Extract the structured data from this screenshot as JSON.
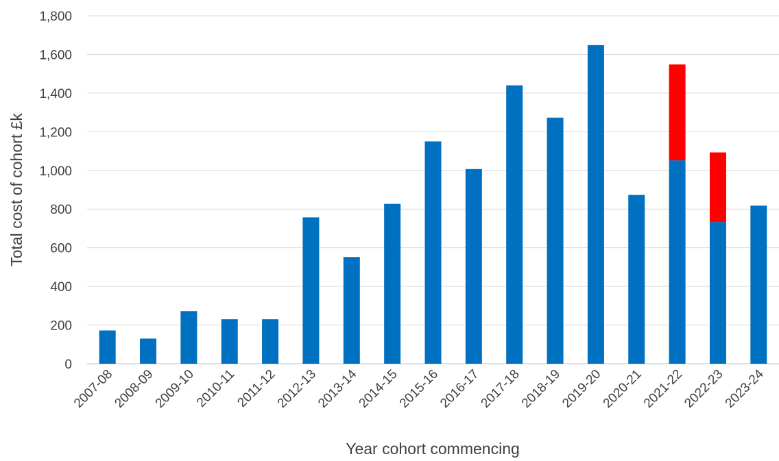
{
  "chart_data": {
    "type": "bar",
    "stacked": true,
    "title": "",
    "xlabel": "Year cohort commencing",
    "ylabel": "Total cost of cohort £k",
    "ylim": [
      0,
      1800
    ],
    "yticks": [
      0,
      200,
      400,
      600,
      800,
      1000,
      1200,
      1400,
      1600,
      1800
    ],
    "ytick_labels": [
      "0",
      "200",
      "400",
      "600",
      "800",
      "1,000",
      "1,200",
      "1,400",
      "1,600",
      "1,800"
    ],
    "grid": "horizontal",
    "legend": "none",
    "categories": [
      "2007-08",
      "2008-09",
      "2009-10",
      "2010-11",
      "2011-12",
      "2012-13",
      "2013-14",
      "2014-15",
      "2015-16",
      "2016-17",
      "2017-18",
      "2018-19",
      "2019-20",
      "2020-21",
      "2021-22",
      "2022-23",
      "2023-24"
    ],
    "series": [
      {
        "color": "#0070C0",
        "values": [
          172,
          130,
          272,
          230,
          230,
          757,
          552,
          827,
          1150,
          1007,
          1440,
          1273,
          1648,
          873,
          1052,
          733,
          818
        ]
      },
      {
        "color": "#FF0000",
        "values": [
          0,
          0,
          0,
          0,
          0,
          0,
          0,
          0,
          0,
          0,
          0,
          0,
          0,
          0,
          496,
          360,
          0
        ]
      }
    ],
    "colors": {
      "gridline": "#D9D9D9",
      "axis": "#BFBFBF",
      "text": "#404040"
    }
  }
}
